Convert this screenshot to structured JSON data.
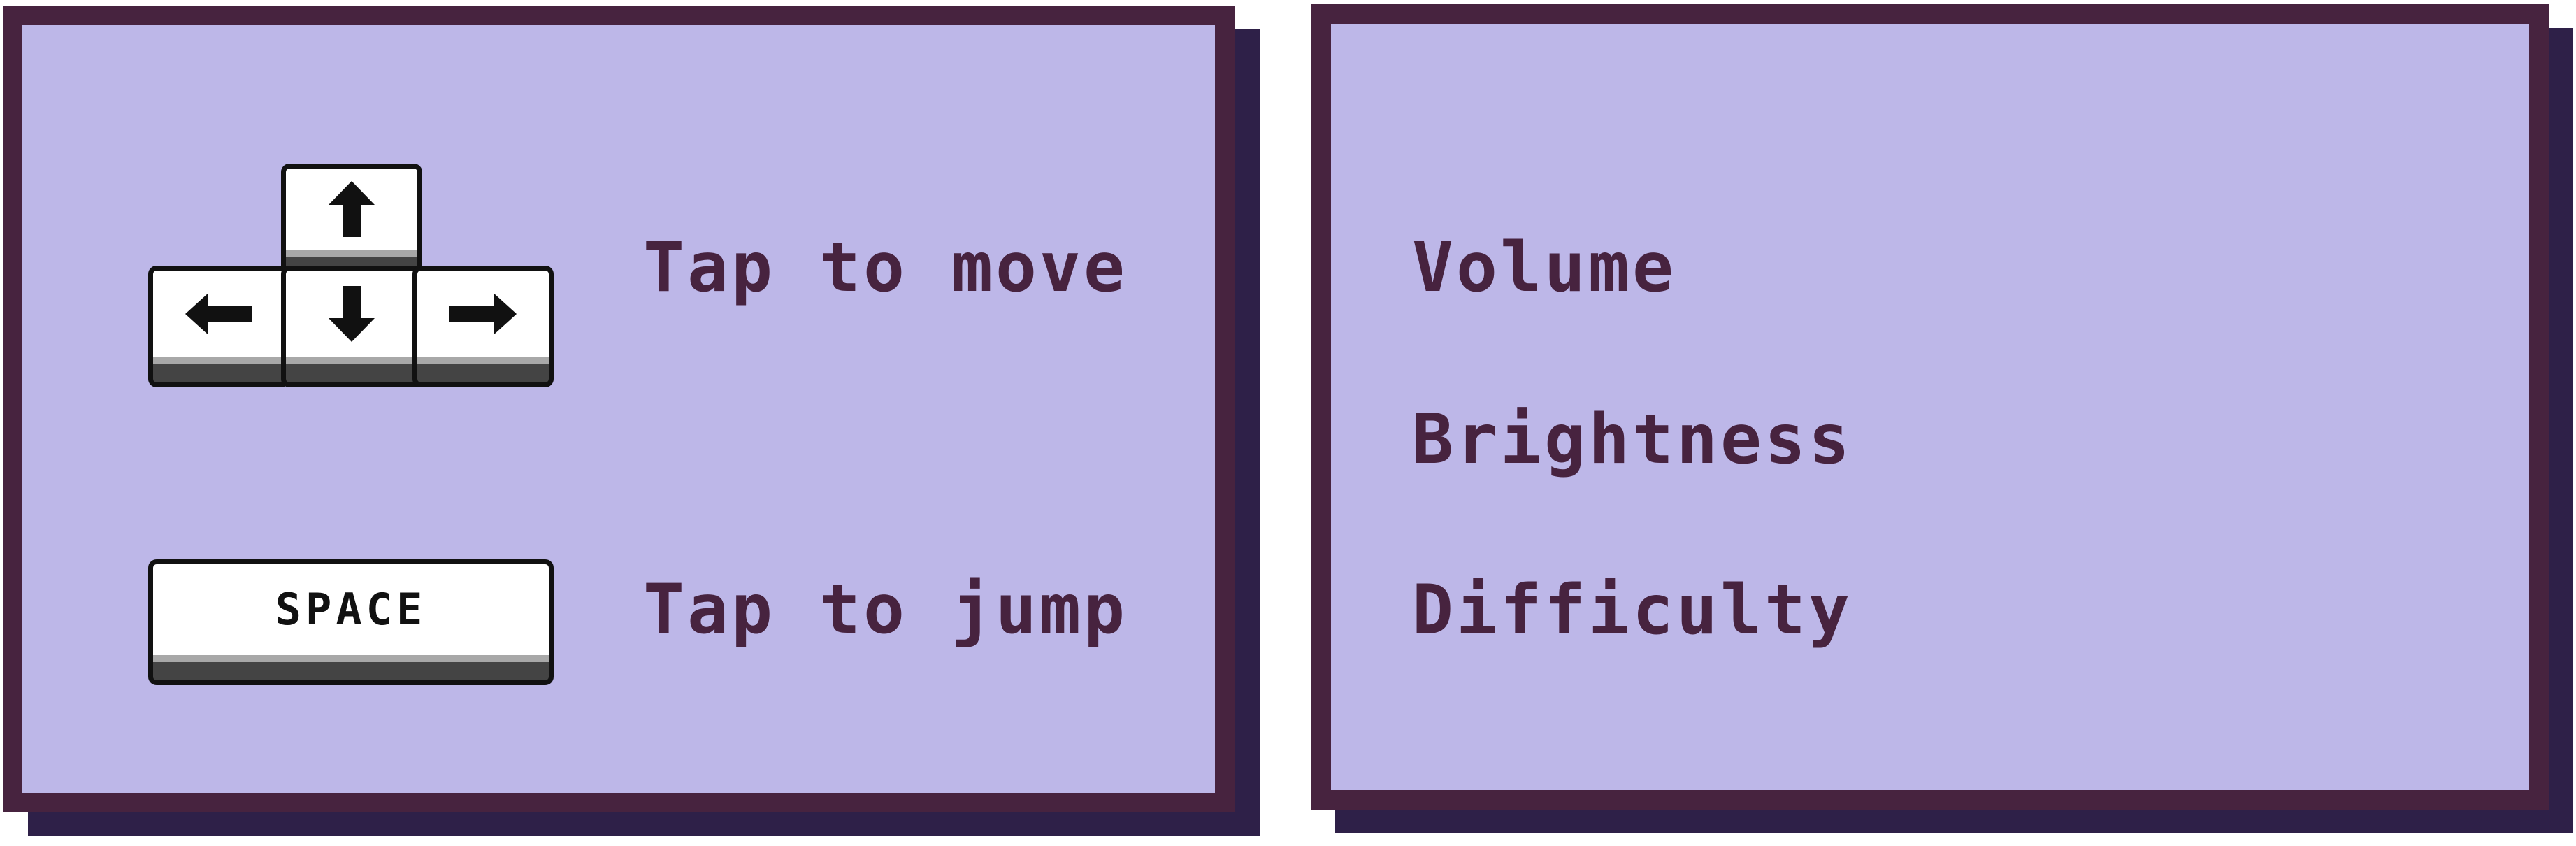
{
  "controls": {
    "move_label": "Tap to move",
    "jump_label": "Tap to jump",
    "keys": {
      "up": "up-arrow-icon",
      "down": "down-arrow-icon",
      "left": "left-arrow-icon",
      "right": "right-arrow-icon",
      "space_label": "SPACE"
    }
  },
  "settings": {
    "items": [
      {
        "label": "Volume"
      },
      {
        "label": "Brightness"
      },
      {
        "label": "Difficulty"
      }
    ]
  },
  "colors": {
    "panel_fill": "#bdb7e8",
    "panel_border": "#47233f",
    "panel_shadow": "#2e2048",
    "text": "#47233f"
  }
}
